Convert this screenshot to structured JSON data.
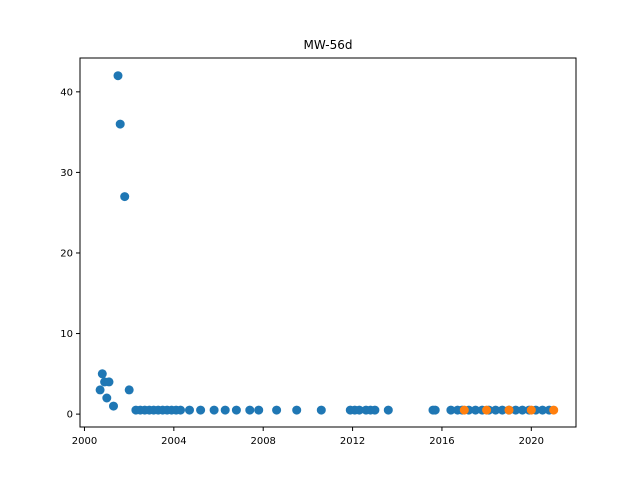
{
  "chart_data": {
    "type": "scatter",
    "title": "MW-56d",
    "xlabel": "",
    "ylabel": "",
    "xlim": [
      1999.8,
      2022.0
    ],
    "ylim": [
      -1.6,
      44.2
    ],
    "x_ticks": [
      2000,
      2004,
      2008,
      2012,
      2016,
      2020
    ],
    "x_tick_labels": [
      "2000",
      "2004",
      "2008",
      "2012",
      "2016",
      "2020"
    ],
    "y_ticks": [
      0,
      10,
      20,
      30,
      40
    ],
    "y_tick_labels": [
      "0",
      "10",
      "20",
      "30",
      "40"
    ],
    "grid": false,
    "series": [
      {
        "color": "#1f77b4",
        "points": [
          [
            2000.7,
            3
          ],
          [
            2000.8,
            5
          ],
          [
            2000.9,
            4
          ],
          [
            2001.0,
            2
          ],
          [
            2001.1,
            4
          ],
          [
            2001.3,
            1
          ],
          [
            2001.5,
            42
          ],
          [
            2001.6,
            36
          ],
          [
            2001.8,
            27
          ],
          [
            2002.0,
            3
          ],
          [
            2002.3,
            0.5
          ],
          [
            2002.5,
            0.5
          ],
          [
            2002.7,
            0.5
          ],
          [
            2002.9,
            0.5
          ],
          [
            2003.1,
            0.5
          ],
          [
            2003.3,
            0.5
          ],
          [
            2003.5,
            0.5
          ],
          [
            2003.7,
            0.5
          ],
          [
            2003.9,
            0.5
          ],
          [
            2004.1,
            0.5
          ],
          [
            2004.3,
            0.5
          ],
          [
            2004.7,
            0.5
          ],
          [
            2005.2,
            0.5
          ],
          [
            2005.8,
            0.5
          ],
          [
            2006.3,
            0.5
          ],
          [
            2006.8,
            0.5
          ],
          [
            2007.4,
            0.5
          ],
          [
            2007.8,
            0.5
          ],
          [
            2008.6,
            0.5
          ],
          [
            2009.5,
            0.5
          ],
          [
            2010.6,
            0.5
          ],
          [
            2011.9,
            0.5
          ],
          [
            2012.1,
            0.5
          ],
          [
            2012.3,
            0.5
          ],
          [
            2012.6,
            0.5
          ],
          [
            2012.8,
            0.5
          ],
          [
            2013.0,
            0.5
          ],
          [
            2013.6,
            0.5
          ],
          [
            2015.6,
            0.5
          ],
          [
            2015.7,
            0.5
          ],
          [
            2016.4,
            0.5
          ],
          [
            2016.7,
            0.5
          ],
          [
            2016.9,
            0.5
          ],
          [
            2017.2,
            0.5
          ],
          [
            2017.5,
            0.5
          ],
          [
            2017.8,
            0.5
          ],
          [
            2018.1,
            0.5
          ],
          [
            2018.4,
            0.5
          ],
          [
            2018.7,
            0.5
          ],
          [
            2019.0,
            0.5
          ],
          [
            2019.3,
            0.5
          ],
          [
            2019.6,
            0.5
          ],
          [
            2019.9,
            0.5
          ],
          [
            2020.2,
            0.5
          ],
          [
            2020.5,
            0.5
          ],
          [
            2020.8,
            0.5
          ]
        ]
      },
      {
        "color": "#ff7f0e",
        "points": [
          [
            2017.0,
            0.5
          ],
          [
            2018.0,
            0.5
          ],
          [
            2019.0,
            0.5
          ],
          [
            2020.0,
            0.5
          ],
          [
            2021.0,
            0.5
          ]
        ]
      }
    ]
  }
}
